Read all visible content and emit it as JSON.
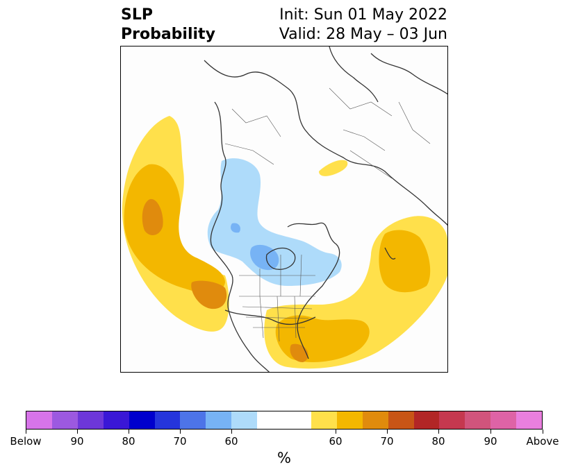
{
  "title": {
    "left_line1": "SLP",
    "left_line2": "Probability",
    "init": "Init: Sun 01 May 2022",
    "valid": "Valid: 28 May – 03 Jun"
  },
  "colorbar": {
    "unit": "%",
    "colors": [
      "#d774e9",
      "#9c59e0",
      "#6d37d9",
      "#3a17d6",
      "#0000cd",
      "#2535dc",
      "#4d74e8",
      "#77b3f5",
      "#aedbfa",
      "#ffffff",
      "#ffffff",
      "#ffe04b",
      "#f3b700",
      "#e08b0d",
      "#c85516",
      "#b22626",
      "#c5384f",
      "#d1547c",
      "#de63a6",
      "#e97fde"
    ],
    "tick_labels": [
      "Below",
      "90",
      "80",
      "70",
      "60",
      "60",
      "70",
      "80",
      "90",
      "Above"
    ]
  },
  "legend_colors": {
    "above_60": "#ffe04b",
    "above_70": "#f3b700",
    "above_80": "#e08b0d",
    "below_60": "#aedbfa",
    "below_70": "#77b3f5"
  }
}
